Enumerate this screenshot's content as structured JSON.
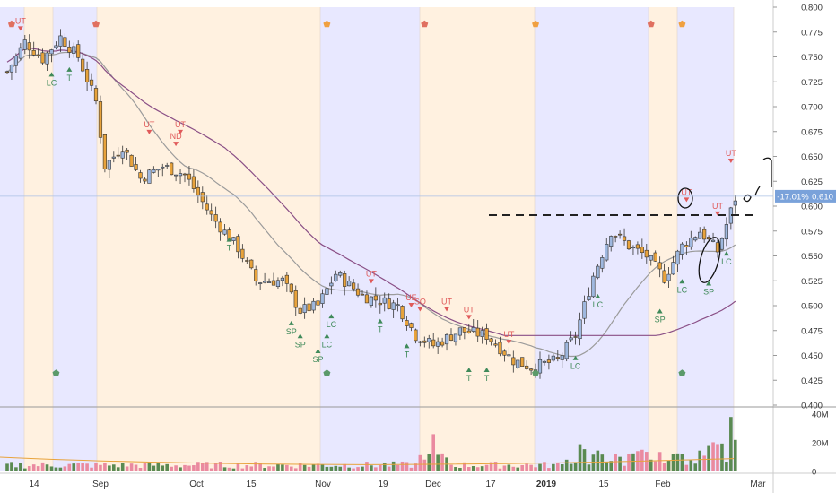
{
  "chart_data": {
    "type": "candlestick",
    "price_axis": {
      "ylim": [
        0.4,
        0.8
      ],
      "ticks": [
        "0.800",
        "0.775",
        "0.750",
        "0.725",
        "0.700",
        "0.675",
        "0.650",
        "0.625",
        "0.600",
        "0.575",
        "0.550",
        "0.525",
        "0.500",
        "0.475",
        "0.450",
        "0.425",
        "0.400"
      ]
    },
    "volume_axis": {
      "ylim": [
        0,
        40
      ],
      "ticks": [
        {
          "value": 40,
          "label": "40M"
        },
        {
          "value": 20,
          "label": "20M"
        },
        {
          "value": 0,
          "label": "0"
        }
      ]
    },
    "x_ticks": [
      "14",
      "Sep",
      "Oct",
      "15",
      "Nov",
      "19",
      "Dec",
      "17",
      "2019",
      "15",
      "Feb",
      "Mar"
    ],
    "current_price": {
      "value": 0.61,
      "label": "0.610",
      "change_label": "-17.01%"
    },
    "resistance_level": 0.591,
    "colors": {
      "up": "#9fb8df",
      "down": "#e8a33c",
      "volume_up": "#5a8a52",
      "volume_down": "#ea8aa0",
      "ma_short": "#9b9b9b",
      "ma_long": "#8a4f86",
      "band_blue": "#e8e8ff",
      "band_orange": "#fff1e0",
      "signal_red": "#e05a5a",
      "signal_green": "#3f8a5a",
      "vol_ma": "#e8a33c"
    },
    "signals_up": [
      {
        "label": "UT",
        "t": 3,
        "y": 0.778
      },
      {
        "label": "UT",
        "t": 32,
        "y": 0.674
      },
      {
        "label": "ND",
        "t": 38,
        "y": 0.662
      },
      {
        "label": "UT",
        "t": 39,
        "y": 0.674
      },
      {
        "label": "UT",
        "t": 82,
        "y": 0.524
      },
      {
        "label": "UE",
        "t": 91,
        "y": 0.5
      },
      {
        "label": "SO",
        "t": 93,
        "y": 0.496
      },
      {
        "label": "UT",
        "t": 99,
        "y": 0.496
      },
      {
        "label": "UT",
        "t": 104,
        "y": 0.488
      },
      {
        "label": "UT",
        "t": 113,
        "y": 0.463
      },
      {
        "label": "UT",
        "t": 153,
        "y": 0.606
      },
      {
        "label": "UT",
        "t": 160,
        "y": 0.592
      },
      {
        "label": "UT",
        "t": 163,
        "y": 0.645
      }
    ],
    "signals_down": [
      {
        "label": "LC",
        "t": 10,
        "y": 0.733
      },
      {
        "label": "T",
        "t": 14,
        "y": 0.738
      },
      {
        "label": "T",
        "t": 50,
        "y": 0.567
      },
      {
        "label": "SP",
        "t": 64,
        "y": 0.483
      },
      {
        "label": "SP",
        "t": 66,
        "y": 0.47
      },
      {
        "label": "LC",
        "t": 72,
        "y": 0.47
      },
      {
        "label": "SP",
        "t": 70,
        "y": 0.455
      },
      {
        "label": "LC",
        "t": 73,
        "y": 0.49
      },
      {
        "label": "T",
        "t": 84,
        "y": 0.485
      },
      {
        "label": "T",
        "t": 90,
        "y": 0.46
      },
      {
        "label": "T",
        "t": 104,
        "y": 0.436
      },
      {
        "label": "T",
        "t": 108,
        "y": 0.436
      },
      {
        "label": "LC",
        "t": 128,
        "y": 0.448
      },
      {
        "label": "LC",
        "t": 133,
        "y": 0.51
      },
      {
        "label": "SP",
        "t": 147,
        "y": 0.495
      },
      {
        "label": "LC",
        "t": 152,
        "y": 0.525
      },
      {
        "label": "SP",
        "t": 158,
        "y": 0.523
      },
      {
        "label": "LC",
        "t": 162,
        "y": 0.553
      }
    ],
    "pentagons": [
      {
        "t": 1,
        "y": 0.783,
        "color": "red"
      },
      {
        "t": 20,
        "y": 0.783,
        "color": "red"
      },
      {
        "t": 72,
        "y": 0.783,
        "color": "orange"
      },
      {
        "t": 94,
        "y": 0.783,
        "color": "red"
      },
      {
        "t": 119,
        "y": 0.783,
        "color": "orange"
      },
      {
        "t": 145,
        "y": 0.783,
        "color": "red"
      },
      {
        "t": 152,
        "y": 0.783,
        "color": "orange"
      },
      {
        "t": 11,
        "y": 0.432,
        "color": "green"
      },
      {
        "t": 72,
        "y": 0.432,
        "color": "green"
      },
      {
        "t": 119,
        "y": 0.432,
        "color": "green"
      },
      {
        "t": 152,
        "y": 0.432,
        "color": "green"
      }
    ]
  }
}
